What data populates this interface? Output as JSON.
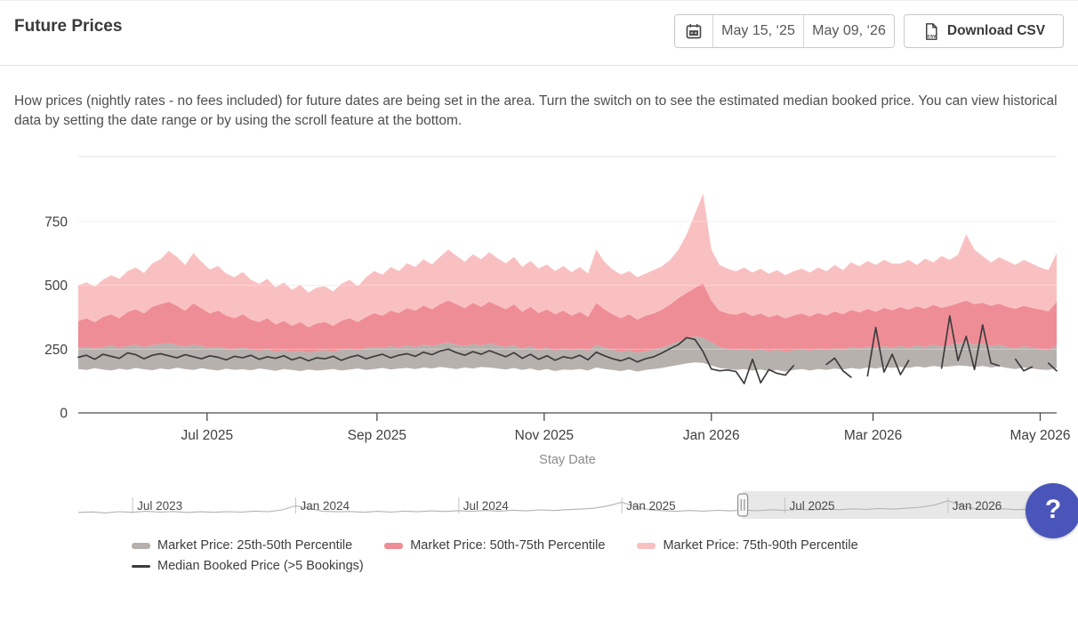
{
  "header": {
    "title": "Future Prices"
  },
  "date_range": {
    "start": "May 15, ‘25",
    "end": "May 09, ‘26"
  },
  "download": {
    "label": "Download CSV"
  },
  "description": "How prices (nightly rates - no fees included) for future dates are being set in the area. Turn the switch on to see the estimated median booked price. You can view historical data by setting the date range or by using the scroll feature at the bottom.",
  "help": {
    "label": "?"
  },
  "legend": {
    "items": [
      {
        "label": "Market Price: 25th-50th Percentile",
        "color": "#b7b1ae",
        "type": "band"
      },
      {
        "label": "Market Price: 50th-75th Percentile",
        "color": "#ef8d96",
        "type": "band"
      },
      {
        "label": "Market Price: 75th-90th Percentile",
        "color": "#f9c0c2",
        "type": "band"
      },
      {
        "label": "Median Booked Price (>5 Bookings)",
        "color": "#3d3d3d",
        "type": "line"
      }
    ]
  },
  "chart_data": [
    {
      "type": "area",
      "title": "Future Prices",
      "xlabel": "Stay Date",
      "ylabel": "",
      "ylim": [
        0,
        970
      ],
      "yticks": [
        0,
        250,
        500,
        750
      ],
      "grid": true,
      "legend_position": "bottom",
      "x_start_date_label": "May 15, ‘25",
      "x_end_date_label": "May 09, ‘26",
      "x_step_days": 3,
      "x_total_days": 357,
      "xticks": [
        {
          "label": "Jul 2025",
          "day": 47
        },
        {
          "label": "Sep 2025",
          "day": 109
        },
        {
          "label": "Nov 2025",
          "day": 170
        },
        {
          "label": "Jan 2026",
          "day": 231
        },
        {
          "label": "Mar 2026",
          "day": 290
        },
        {
          "label": "May 2026",
          "day": 351
        }
      ],
      "bands": [
        {
          "name": "Market Price: 25th-50th Percentile",
          "lower": "p25",
          "upper": "p50",
          "color": "#b7b1ae"
        },
        {
          "name": "Market Price: 50th-75th Percentile",
          "lower": "p50",
          "upper": "p75",
          "color": "#ef8d96"
        },
        {
          "name": "Market Price: 75th-90th Percentile",
          "lower": "p75",
          "upper": "p90",
          "color": "#f9c0c2"
        }
      ],
      "p25": [
        172,
        168,
        175,
        170,
        166,
        173,
        169,
        176,
        171,
        167,
        174,
        170,
        177,
        172,
        168,
        175,
        170,
        166,
        173,
        169,
        171,
        167,
        174,
        170,
        165,
        172,
        168,
        164,
        170,
        166,
        168,
        172,
        166,
        170,
        174,
        168,
        172,
        176,
        170,
        174,
        176,
        172,
        178,
        174,
        180,
        176,
        172,
        178,
        174,
        180,
        178,
        174,
        170,
        176,
        168,
        174,
        166,
        172,
        164,
        170,
        168,
        172,
        166,
        178,
        172,
        168,
        164,
        170,
        162,
        168,
        172,
        176,
        182,
        188,
        194,
        198,
        196,
        186,
        176,
        172,
        168,
        172,
        166,
        170,
        164,
        168,
        162,
        168,
        172,
        166,
        172,
        168,
        174,
        170,
        176,
        172,
        178,
        174,
        180,
        176,
        180,
        176,
        182,
        178,
        184,
        180,
        182,
        186,
        184,
        180,
        184,
        178,
        182,
        176,
        172,
        178,
        174,
        170,
        168,
        176
      ],
      "p50": [
        255,
        260,
        252,
        258,
        264,
        256,
        262,
        268,
        258,
        266,
        270,
        274,
        266,
        260,
        268,
        262,
        255,
        260,
        252,
        250,
        256,
        248,
        244,
        250,
        240,
        246,
        238,
        244,
        236,
        242,
        246,
        240,
        248,
        252,
        246,
        254,
        260,
        254,
        262,
        256,
        264,
        258,
        268,
        262,
        270,
        276,
        268,
        262,
        270,
        264,
        272,
        266,
        258,
        266,
        252,
        262,
        248,
        256,
        244,
        252,
        246,
        252,
        244,
        268,
        256,
        248,
        240,
        246,
        236,
        242,
        248,
        256,
        268,
        280,
        292,
        300,
        296,
        278,
        258,
        250,
        246,
        252,
        244,
        250,
        242,
        248,
        240,
        246,
        250,
        244,
        252,
        246,
        254,
        248,
        258,
        252,
        260,
        254,
        262,
        256,
        262,
        256,
        264,
        258,
        268,
        260,
        266,
        272,
        278,
        268,
        272,
        262,
        268,
        258,
        252,
        262,
        256,
        250,
        246,
        264
      ],
      "p75": [
        360,
        371,
        355,
        376,
        386,
        371,
        396,
        406,
        390,
        416,
        426,
        436,
        420,
        400,
        430,
        410,
        390,
        401,
        381,
        371,
        386,
        366,
        356,
        371,
        346,
        361,
        341,
        356,
        336,
        351,
        356,
        341,
        361,
        371,
        356,
        376,
        391,
        381,
        401,
        391,
        411,
        401,
        421,
        406,
        426,
        441,
        426,
        411,
        431,
        416,
        436,
        421,
        406,
        426,
        396,
        416,
        391,
        406,
        386,
        401,
        381,
        396,
        376,
        431,
        406,
        386,
        371,
        386,
        366,
        381,
        390,
        405,
        425,
        450,
        470,
        490,
        508,
        440,
        400,
        390,
        385,
        395,
        380,
        390,
        375,
        385,
        370,
        382,
        390,
        378,
        392,
        382,
        398,
        386,
        404,
        394,
        408,
        396,
        412,
        402,
        415,
        405,
        418,
        408,
        424,
        412,
        420,
        430,
        440,
        426,
        432,
        420,
        428,
        416,
        408,
        420,
        412,
        405,
        398,
        435
      ],
      "p90": [
        500,
        512,
        495,
        522,
        540,
        526,
        556,
        570,
        548,
        586,
        602,
        635,
        612,
        580,
        626,
        592,
        562,
        576,
        546,
        532,
        552,
        522,
        506,
        526,
        492,
        512,
        482,
        502,
        472,
        492,
        496,
        476,
        506,
        522,
        496,
        532,
        556,
        542,
        572,
        556,
        586,
        572,
        602,
        582,
        612,
        640,
        616,
        592,
        622,
        602,
        630,
        606,
        586,
        612,
        572,
        596,
        566,
        582,
        556,
        576,
        552,
        572,
        546,
        640,
        592,
        562,
        542,
        556,
        532,
        546,
        560,
        575,
        600,
        640,
        700,
        780,
        860,
        640,
        580,
        565,
        555,
        570,
        550,
        565,
        545,
        560,
        540,
        555,
        565,
        550,
        570,
        555,
        580,
        560,
        590,
        575,
        595,
        580,
        600,
        585,
        585,
        600,
        580,
        605,
        590,
        615,
        600,
        620,
        700,
        640,
        615,
        590,
        610,
        595,
        580,
        600,
        585,
        570,
        560,
        625
      ],
      "median": [
        218,
        226,
        210,
        230,
        222,
        214,
        235,
        228,
        212,
        226,
        232,
        224,
        216,
        228,
        220,
        212,
        224,
        218,
        208,
        222,
        216,
        226,
        210,
        220,
        214,
        224,
        208,
        218,
        204,
        216,
        212,
        222,
        206,
        218,
        226,
        212,
        222,
        230,
        216,
        226,
        232,
        222,
        238,
        228,
        242,
        250,
        236,
        226,
        240,
        230,
        244,
        232,
        220,
        236,
        214,
        230,
        210,
        224,
        206,
        220,
        214,
        226,
        208,
        238,
        224,
        212,
        204,
        216,
        200,
        212,
        220,
        235,
        252,
        268,
        295,
        288,
        240,
        172,
        165,
        168,
        162,
        115,
        210,
        118,
        170,
        155,
        148,
        185,
        null,
        null,
        null,
        190,
        215,
        165,
        140,
        null,
        145,
        335,
        160,
        230,
        150,
        205,
        null,
        null,
        null,
        175,
        380,
        205,
        300,
        170,
        345,
        195,
        185,
        null,
        210,
        165,
        180,
        null,
        195,
        165
      ]
    },
    {
      "type": "line",
      "title": "scroll navigator",
      "months_total": 36,
      "ticks": [
        {
          "label": "Jul 2023",
          "month": 2
        },
        {
          "label": "Jan 2024",
          "month": 8
        },
        {
          "label": "Jul 2024",
          "month": 14
        },
        {
          "label": "Jan 2025",
          "month": 20
        },
        {
          "label": "Jul 2025",
          "month": 26
        },
        {
          "label": "Jan 2026",
          "month": 32
        }
      ],
      "selection": {
        "start_month": 24.45,
        "end_month": 36
      },
      "values": [
        215,
        222,
        210,
        225,
        218,
        230,
        220,
        228,
        215,
        224,
        218,
        226,
        220,
        232,
        226,
        248,
        300,
        268,
        230,
        224,
        228,
        218,
        230,
        220,
        232,
        224,
        236,
        228,
        238,
        230,
        240,
        232,
        244,
        236,
        248,
        240,
        252,
        258,
        270,
        300,
        345,
        290,
        250,
        238,
        230,
        240,
        232,
        242,
        236,
        246,
        238,
        250,
        242,
        254,
        246,
        258,
        250,
        262,
        254,
        266,
        258,
        270,
        282,
        310,
        365,
        300,
        262,
        255,
        262,
        250,
        258,
        248,
        255
      ]
    }
  ],
  "chart_style": {
    "axis_color": "#4b4b4b",
    "grid_color": "#e9e9e9",
    "tick_label_color": "#3f3f3f",
    "xlabel_color": "#8c8c8c",
    "median_line_color": "#3d3d3d",
    "navigator_line_color": "#b3b3b3",
    "navigator_selection_color": "#e8e8e8",
    "handle_border_color": "#8f8f8f",
    "handle_fill_color": "#f8f8f8"
  }
}
